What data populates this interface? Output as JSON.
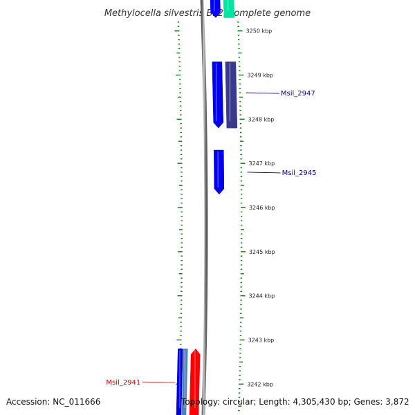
{
  "title": "Methylocella silvestris BL2, complete genome",
  "accession_text": "Accession: NC_011666",
  "topology_text": "Topology: circular; Length: 4,305,430 bp; Genes: 3,872",
  "view": {
    "kbp_top": 3250.7,
    "kbp_bottom": 3241.3
  },
  "scale_ticks": [
    {
      "kbp": 3250,
      "label": "3250 kbp"
    },
    {
      "kbp": 3249,
      "label": "3249 kbp"
    },
    {
      "kbp": 3248,
      "label": "3248 kbp"
    },
    {
      "kbp": 3247,
      "label": "3247 kbp"
    },
    {
      "kbp": 3246,
      "label": "3246 kbp"
    },
    {
      "kbp": 3245,
      "label": "3245 kbp"
    },
    {
      "kbp": 3244,
      "label": "3244 kbp"
    },
    {
      "kbp": 3243,
      "label": "3243 kbp"
    },
    {
      "kbp": 3242,
      "label": "3242 kbp"
    }
  ],
  "genes": [
    {
      "id": "gene-top-blue",
      "strand": "outer-reverse",
      "start_kbp": 3250.3,
      "end_kbp": 3250.75,
      "color": "#0000ff"
    },
    {
      "id": "gene-top-green",
      "strand": "outer-forward",
      "start_kbp": 3250.3,
      "end_kbp": 3250.75,
      "color": "#00e6a0"
    },
    {
      "id": "Msil_2947-a",
      "strand": "outer-reverse",
      "start_kbp": 3247.8,
      "end_kbp": 3249.3,
      "color": "#0000ee"
    },
    {
      "id": "Msil_2947-b",
      "strand": "outer-forward",
      "start_kbp": 3247.8,
      "end_kbp": 3249.3,
      "color": "#3a3a8c"
    },
    {
      "id": "Msil_2945",
      "strand": "outer-reverse",
      "start_kbp": 3246.3,
      "end_kbp": 3247.3,
      "color": "#0000ee"
    },
    {
      "id": "gene-bottom-blue",
      "strand": "inner-a",
      "start_kbp": 3241.3,
      "end_kbp": 3242.8,
      "color": "#0000dd"
    },
    {
      "id": "gene-bottom-steel",
      "strand": "inner-b",
      "start_kbp": 3241.3,
      "end_kbp": 3242.8,
      "color": "#4f7fbf"
    },
    {
      "id": "Msil_2941",
      "strand": "inner-forward",
      "start_kbp": 3241.3,
      "end_kbp": 3242.8,
      "color": "#ff0000"
    }
  ],
  "gene_labels": [
    {
      "text": "Msil_2947",
      "kbp": 3248.6,
      "color": "#00008b",
      "side": "right"
    },
    {
      "text": "Msil_2945",
      "kbp": 3246.8,
      "color": "#00008b",
      "side": "right"
    },
    {
      "text": "Msil_2941",
      "kbp": 3242.05,
      "color": "#cc0000",
      "side": "left"
    }
  ],
  "colors": {
    "backbone": "#8a8a8a",
    "tick": "#007700",
    "gene_blue": "#0000ee",
    "gene_red": "#ff0000",
    "gene_green": "#00e6a0"
  }
}
